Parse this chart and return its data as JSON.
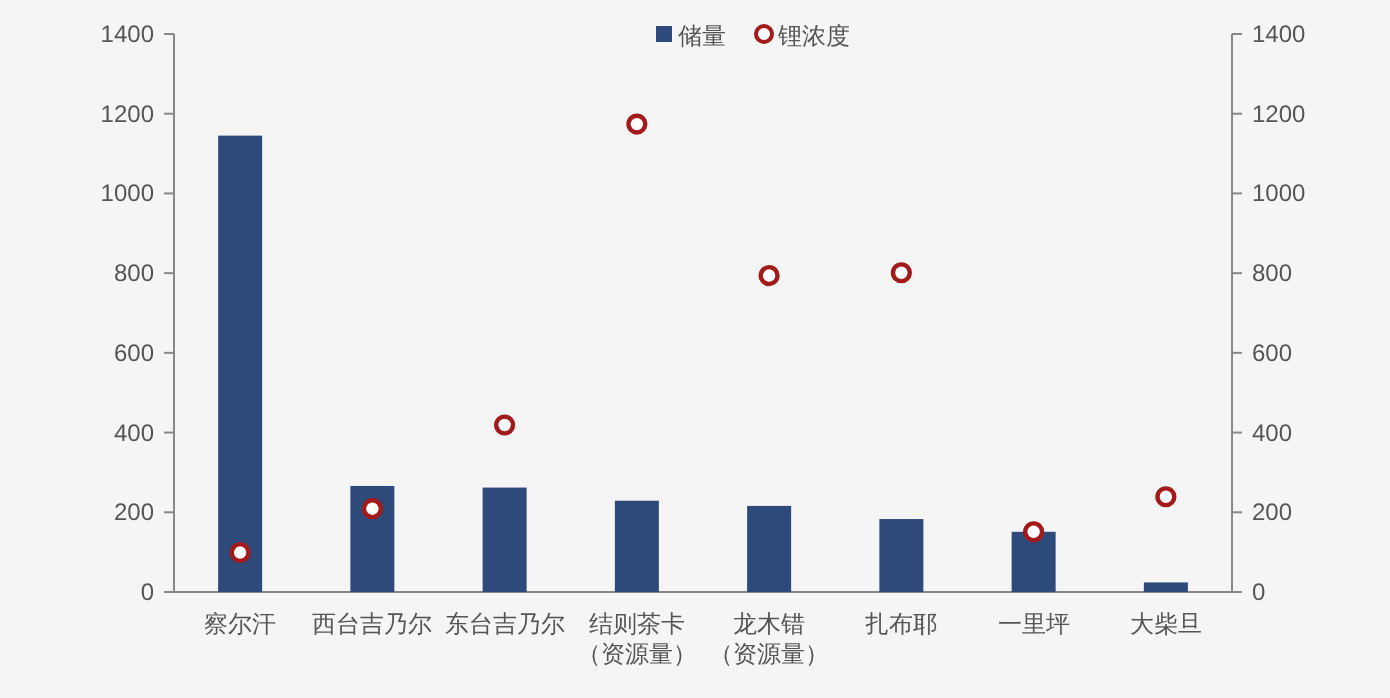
{
  "chart_data": {
    "type": "bar",
    "categories": [
      "察尔汗",
      "西台吉乃尔",
      "东台吉乃尔",
      "结则茶卡（资源量）",
      "龙木错（资源量）",
      "扎布耶",
      "一里坪",
      "大柴旦"
    ],
    "series": [
      {
        "name": "储量",
        "color": "#2e4a7a",
        "values": [
          1145,
          266,
          262,
          229,
          216,
          183,
          151,
          24
        ]
      },
      {
        "name": "锂浓度",
        "type": "scatter",
        "axis": "y2",
        "color": "#a31a1a",
        "marker": "circle",
        "values": [
          99,
          209,
          419,
          1174,
          794,
          801,
          151,
          239
        ]
      }
    ],
    "ylim": [
      0,
      1400
    ],
    "yticks": [
      0,
      200,
      400,
      600,
      800,
      1000,
      1200,
      1400
    ],
    "y2lim": [
      0,
      1400
    ],
    "y2ticks": [
      0,
      200,
      400,
      600,
      800,
      1000,
      1200,
      1400
    ],
    "grid": false,
    "legend": "top"
  }
}
